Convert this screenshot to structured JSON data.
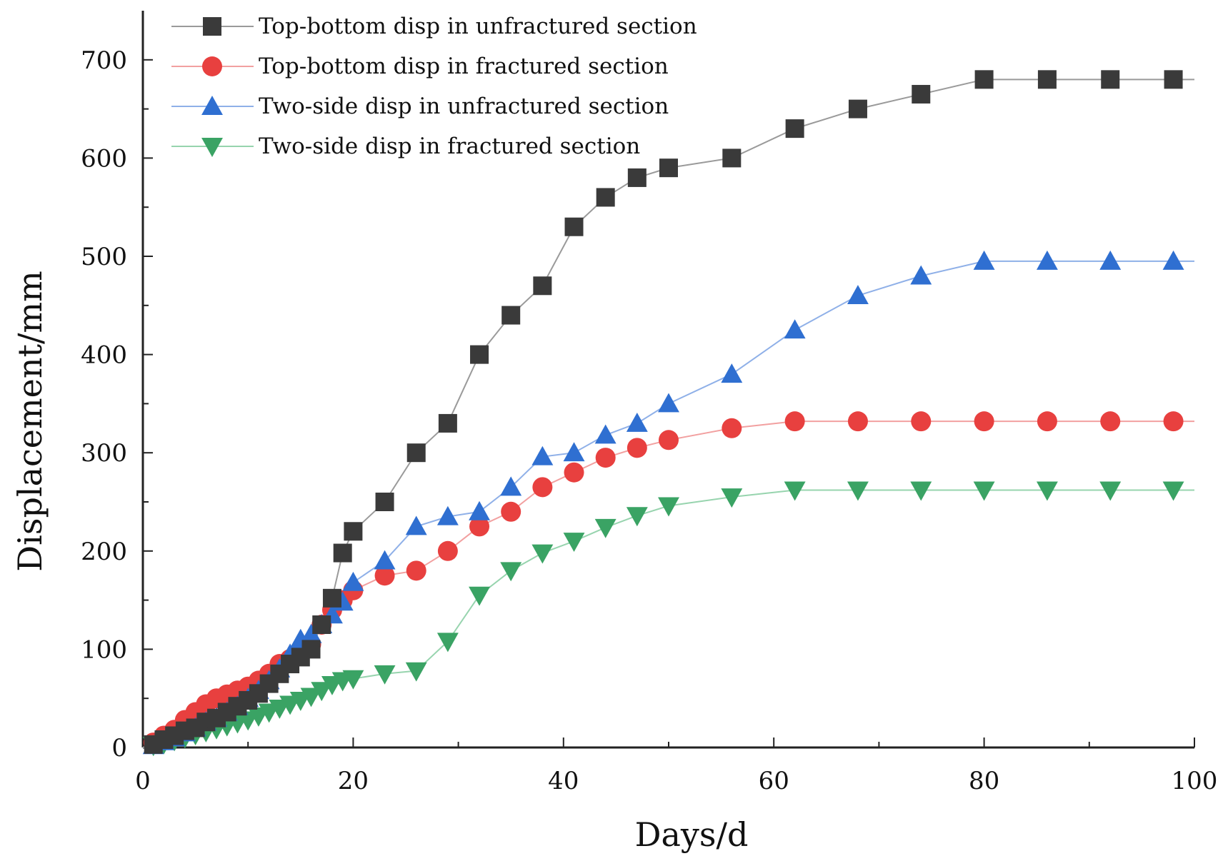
{
  "chart_data": {
    "type": "line",
    "title": "",
    "xlabel": "Days/d",
    "ylabel": "Displacement/mm",
    "xlim": [
      0,
      100
    ],
    "ylim": [
      0,
      750
    ],
    "xticks": [
      0,
      20,
      40,
      60,
      80,
      100
    ],
    "yticks": [
      0,
      100,
      200,
      300,
      400,
      500,
      600,
      700
    ],
    "legend_position": "top-left",
    "series": [
      {
        "name": "Top-bottom disp in unfractured section",
        "marker": "square",
        "color": "#3a3a3a",
        "line_color": "#9a9a9a",
        "x": [
          1,
          2,
          3,
          4,
          5,
          6,
          7,
          8,
          9,
          10,
          11,
          12,
          13,
          14,
          15,
          16,
          17,
          18,
          19,
          20,
          23,
          26,
          29,
          32,
          35,
          38,
          41,
          44,
          47,
          50,
          56,
          62,
          68,
          74,
          80,
          86,
          92,
          98
        ],
        "y": [
          3,
          8,
          12,
          17,
          20,
          26,
          30,
          36,
          42,
          48,
          55,
          65,
          75,
          85,
          92,
          100,
          125,
          152,
          198,
          220,
          250,
          300,
          330,
          400,
          440,
          470,
          530,
          560,
          580,
          590,
          600,
          630,
          650,
          665,
          680,
          680,
          680,
          680
        ]
      },
      {
        "name": "Top-bottom disp in fractured section",
        "marker": "circle",
        "color": "#e8403f",
        "line_color": "#f2a0a0",
        "x": [
          1,
          2,
          3,
          4,
          5,
          6,
          7,
          8,
          9,
          10,
          11,
          12,
          13,
          14,
          15,
          16,
          17,
          18,
          19,
          20,
          23,
          26,
          29,
          32,
          35,
          38,
          41,
          44,
          47,
          50,
          56,
          62,
          68,
          74,
          80,
          86,
          92,
          98
        ],
        "y": [
          5,
          12,
          18,
          28,
          36,
          44,
          50,
          54,
          58,
          62,
          68,
          75,
          85,
          90,
          95,
          105,
          125,
          140,
          150,
          160,
          175,
          180,
          200,
          225,
          240,
          265,
          280,
          295,
          305,
          313,
          325,
          332,
          332,
          332,
          332,
          332,
          332,
          332
        ]
      },
      {
        "name": "Two-side disp in unfractured section",
        "marker": "triangle-up",
        "color": "#2f6fd1",
        "line_color": "#8fb0e8",
        "x": [
          1,
          2,
          3,
          4,
          5,
          6,
          7,
          8,
          9,
          10,
          11,
          12,
          13,
          14,
          15,
          16,
          17,
          18,
          19,
          20,
          23,
          26,
          29,
          32,
          35,
          38,
          41,
          44,
          47,
          50,
          56,
          62,
          68,
          74,
          80,
          86,
          92,
          98
        ],
        "y": [
          2,
          6,
          10,
          15,
          20,
          26,
          30,
          36,
          42,
          50,
          58,
          68,
          80,
          95,
          110,
          115,
          125,
          135,
          148,
          168,
          190,
          225,
          235,
          240,
          265,
          296,
          300,
          318,
          330,
          350,
          380,
          425,
          460,
          480,
          495,
          495,
          495,
          495
        ]
      },
      {
        "name": "Two-side disp in fractured section",
        "marker": "triangle-down",
        "color": "#3aa364",
        "line_color": "#97d4ae",
        "x": [
          1,
          2,
          3,
          4,
          5,
          6,
          7,
          8,
          9,
          10,
          11,
          12,
          13,
          14,
          15,
          16,
          17,
          18,
          19,
          20,
          23,
          26,
          29,
          32,
          35,
          38,
          41,
          44,
          47,
          50,
          56,
          62,
          68,
          74,
          80,
          86,
          92,
          98
        ],
        "y": [
          2,
          4,
          7,
          10,
          13,
          16,
          19,
          22,
          25,
          28,
          32,
          36,
          40,
          44,
          48,
          52,
          58,
          64,
          68,
          70,
          75,
          78,
          108,
          155,
          180,
          198,
          210,
          224,
          236,
          246,
          255,
          262,
          262,
          262,
          262,
          262,
          262,
          262
        ]
      }
    ]
  }
}
